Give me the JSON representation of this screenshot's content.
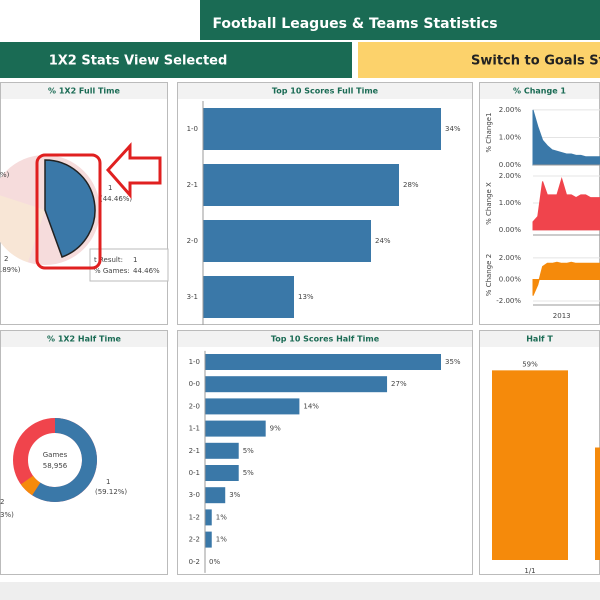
{
  "header": {
    "title": "Football Leagues & Teams Statistics"
  },
  "buttons": {
    "selected": "1X2 Stats View Selected",
    "switch": "Switch to Goals Stats"
  },
  "chart_data": [
    {
      "type": "pie",
      "title": "% 1X2 Full Time",
      "categories": [
        "1"
      ],
      "values": [
        44.46
      ],
      "value_labels": [
        "(44.46%)"
      ],
      "color": "#3a78a8",
      "partial_labels": [
        "%)",
        "2",
        ".89%)"
      ],
      "tooltip": [
        [
          "t Result:",
          "1"
        ],
        [
          "% Games:",
          "44.46%"
        ]
      ]
    },
    {
      "type": "hbar",
      "title": "Top 10 Scores Full Time",
      "categories": [
        "1-0",
        "2-1",
        "2-0",
        "3-1"
      ],
      "values": [
        34,
        28,
        24,
        13
      ],
      "value_labels": [
        "34%",
        "28%",
        "24%",
        "13%"
      ],
      "color": "#3a78a8",
      "xlim": [
        0,
        35
      ]
    },
    {
      "type": "area-multiples",
      "title": "% Change 1",
      "categories": [
        null,
        null,
        null,
        null,
        null,
        null,
        "2013",
        null,
        null,
        null,
        null,
        null,
        null,
        null,
        null
      ],
      "panels": [
        {
          "y_label": "% Change1",
          "color": "#3a78a8",
          "ylim": [
            0,
            2.36
          ],
          "yticks": [
            {
              "value": 0,
              "label": "0.00%"
            },
            {
              "value": 1,
              "label": "1.00%"
            },
            {
              "value": 2,
              "label": "2.00%"
            }
          ],
          "values": [
            2.0,
            1.4,
            0.9,
            0.7,
            0.55,
            0.5,
            0.45,
            0.4,
            0.4,
            0.35,
            0.35,
            0.3,
            0.3,
            0.3,
            0.3
          ]
        },
        {
          "y_label": "% Change X",
          "color": "#f0444c",
          "ylim": [
            -0.19,
            2.15
          ],
          "yticks": [
            {
              "value": 0,
              "label": "0.00%"
            },
            {
              "value": 1,
              "label": "1.00%"
            },
            {
              "value": 2,
              "label": "2.00%"
            }
          ],
          "values": [
            0.3,
            0.5,
            1.8,
            1.3,
            1.3,
            1.3,
            1.9,
            1.3,
            1.3,
            1.2,
            1.3,
            1.3,
            1.2,
            1.2,
            1.2
          ]
        },
        {
          "y_label": "% Change 2",
          "color": "#f58a0b",
          "ylim": [
            -2.37,
            3.2
          ],
          "yticks": [
            {
              "value": -2,
              "label": "-2.00%"
            },
            {
              "value": 0,
              "label": "0.00%"
            },
            {
              "value": 2,
              "label": "2.00%"
            }
          ],
          "values": [
            -1.5,
            -0.5,
            1.2,
            1.5,
            1.5,
            1.6,
            1.5,
            1.5,
            1.6,
            1.5,
            1.5,
            1.5,
            1.5,
            1.5,
            1.5
          ]
        }
      ]
    },
    {
      "type": "donut",
      "title": "% 1X2 Half Time",
      "center_label": "Games",
      "center_value": "58,956",
      "categories": [
        "1"
      ],
      "values": [
        59.12
      ],
      "value_labels": [
        "(59.12%)"
      ],
      "color": "#3a78a8",
      "partial_labels": [
        "2",
        "3%)"
      ]
    },
    {
      "type": "hbar",
      "title": "Top 10 Scores Half Time",
      "categories": [
        "1-0",
        "0-0",
        "2-0",
        "1-1",
        "2-1",
        "0-1",
        "3-0",
        "1-2",
        "2-2",
        "0-2"
      ],
      "values": [
        35,
        27,
        14,
        9,
        5,
        5,
        3,
        1,
        1,
        0
      ],
      "value_labels": [
        "35%",
        "27%",
        "14%",
        "9%",
        "5%",
        "5%",
        "3%",
        "1%",
        "1%",
        "0%"
      ],
      "color": "#3a78a8",
      "xlim": [
        0,
        35
      ]
    },
    {
      "type": "vbar",
      "title": "Half T",
      "categories": [
        "1/1",
        null
      ],
      "values": [
        59,
        35
      ],
      "value_labels": [
        "59%",
        null
      ],
      "color": "#f58a0b",
      "ylim": [
        0,
        70
      ]
    }
  ]
}
